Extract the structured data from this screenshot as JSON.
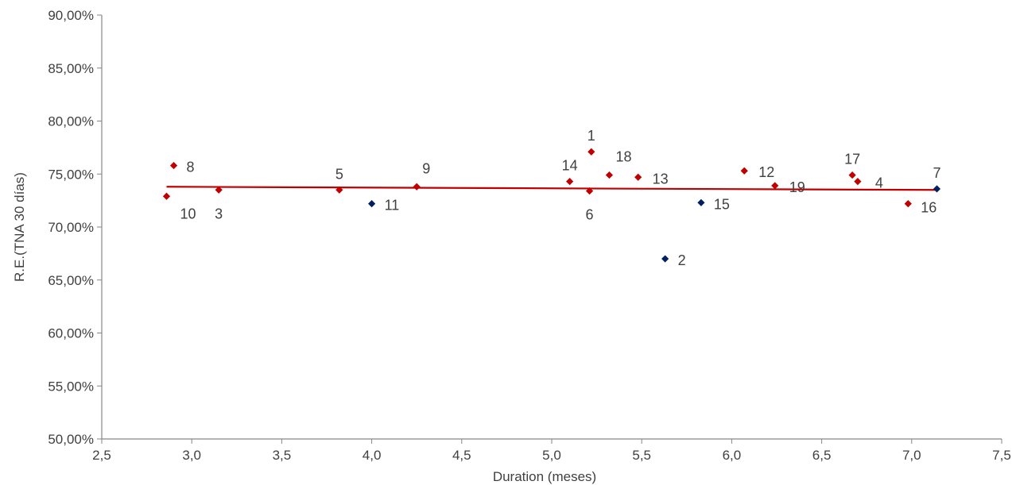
{
  "chart_data": {
    "type": "scatter",
    "title": "",
    "xlabel": "Duration (meses)",
    "ylabel": "R.E.(TNA 30 días)",
    "xlim": [
      2.5,
      7.5
    ],
    "ylim": [
      50,
      90
    ],
    "x_ticks": [
      2.5,
      3.0,
      3.5,
      4.0,
      4.5,
      5.0,
      5.5,
      6.0,
      6.5,
      7.0,
      7.5
    ],
    "x_tick_labels": [
      "2,5",
      "3,0",
      "3,5",
      "4,0",
      "4,5",
      "5,0",
      "5,5",
      "6,0",
      "6,5",
      "7,0",
      "7,5"
    ],
    "y_ticks": [
      50,
      55,
      60,
      65,
      70,
      75,
      80,
      85,
      90
    ],
    "y_tick_labels": [
      "50,00%",
      "55,00%",
      "60,00%",
      "65,00%",
      "70,00%",
      "75,00%",
      "80,00%",
      "85,00%",
      "90,00%"
    ],
    "grid": false,
    "legend": "none",
    "colors": {
      "red": "#c00000",
      "blue": "#002060",
      "trend": "#c00000",
      "axis": "#868686"
    },
    "trendline": {
      "x": [
        2.86,
        7.14
      ],
      "y": [
        73.8,
        73.5
      ]
    },
    "points": [
      {
        "label": "1",
        "x": 5.22,
        "y": 77.1,
        "color": "red"
      },
      {
        "label": "2",
        "x": 5.63,
        "y": 67.0,
        "color": "blue"
      },
      {
        "label": "3",
        "x": 3.15,
        "y": 73.5,
        "color": "red"
      },
      {
        "label": "4",
        "x": 6.7,
        "y": 74.3,
        "color": "red"
      },
      {
        "label": "5",
        "x": 3.82,
        "y": 73.5,
        "color": "red"
      },
      {
        "label": "6",
        "x": 5.21,
        "y": 73.4,
        "color": "red"
      },
      {
        "label": "7",
        "x": 7.14,
        "y": 73.6,
        "color": "blue"
      },
      {
        "label": "8",
        "x": 2.9,
        "y": 75.8,
        "color": "red"
      },
      {
        "label": "9",
        "x": 4.25,
        "y": 73.8,
        "color": "red"
      },
      {
        "label": "10",
        "x": 2.86,
        "y": 72.9,
        "color": "red"
      },
      {
        "label": "11",
        "x": 4.0,
        "y": 72.2,
        "color": "blue"
      },
      {
        "label": "12",
        "x": 6.07,
        "y": 75.3,
        "color": "red"
      },
      {
        "label": "13",
        "x": 5.48,
        "y": 74.7,
        "color": "red"
      },
      {
        "label": "14",
        "x": 5.1,
        "y": 74.3,
        "color": "red"
      },
      {
        "label": "15",
        "x": 5.83,
        "y": 72.3,
        "color": "blue"
      },
      {
        "label": "16",
        "x": 6.98,
        "y": 72.2,
        "color": "red"
      },
      {
        "label": "17",
        "x": 6.67,
        "y": 74.9,
        "color": "red"
      },
      {
        "label": "18",
        "x": 5.32,
        "y": 74.9,
        "color": "red"
      },
      {
        "label": "19",
        "x": 6.24,
        "y": 73.9,
        "color": "red"
      }
    ]
  }
}
